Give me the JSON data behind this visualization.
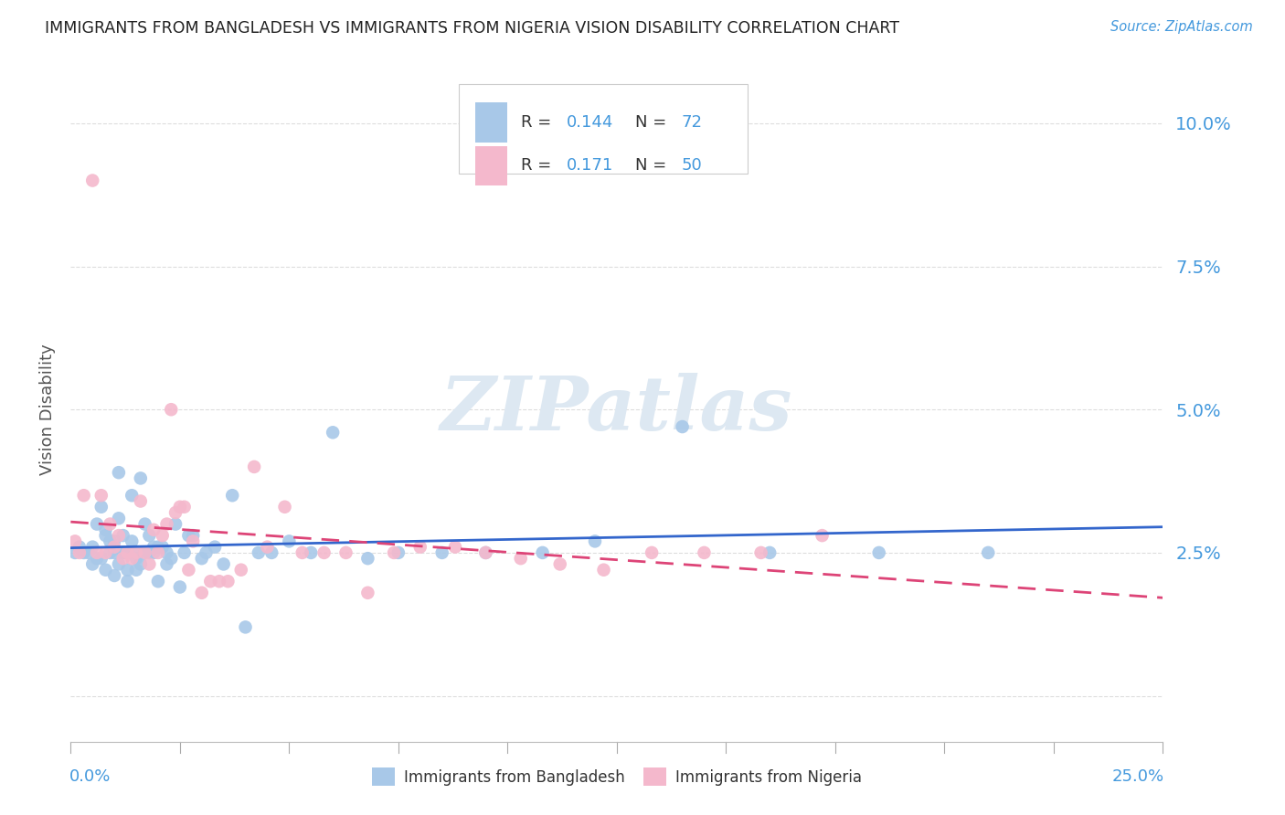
{
  "title": "IMMIGRANTS FROM BANGLADESH VS IMMIGRANTS FROM NIGERIA VISION DISABILITY CORRELATION CHART",
  "source": "Source: ZipAtlas.com",
  "ylabel": "Vision Disability",
  "yticks": [
    0.0,
    0.025,
    0.05,
    0.075,
    0.1
  ],
  "ytick_labels": [
    "",
    "2.5%",
    "5.0%",
    "7.5%",
    "10.0%"
  ],
  "xlim": [
    0.0,
    0.25
  ],
  "ylim": [
    -0.008,
    0.108
  ],
  "color_bangladesh": "#a8c8e8",
  "color_nigeria": "#f4b8cc",
  "trend_color_bangladesh": "#3366cc",
  "trend_color_nigeria": "#dd4477",
  "bangladesh_x": [
    0.001,
    0.002,
    0.003,
    0.004,
    0.005,
    0.005,
    0.006,
    0.006,
    0.007,
    0.007,
    0.008,
    0.008,
    0.008,
    0.009,
    0.009,
    0.01,
    0.01,
    0.01,
    0.011,
    0.011,
    0.011,
    0.012,
    0.012,
    0.012,
    0.013,
    0.013,
    0.013,
    0.014,
    0.014,
    0.015,
    0.015,
    0.015,
    0.016,
    0.016,
    0.017,
    0.017,
    0.018,
    0.018,
    0.019,
    0.019,
    0.02,
    0.02,
    0.021,
    0.022,
    0.022,
    0.023,
    0.024,
    0.025,
    0.026,
    0.027,
    0.028,
    0.03,
    0.031,
    0.033,
    0.035,
    0.037,
    0.04,
    0.043,
    0.046,
    0.05,
    0.055,
    0.06,
    0.068,
    0.075,
    0.085,
    0.095,
    0.108,
    0.12,
    0.14,
    0.16,
    0.185,
    0.21
  ],
  "bangladesh_y": [
    0.025,
    0.026,
    0.025,
    0.025,
    0.026,
    0.023,
    0.03,
    0.024,
    0.033,
    0.024,
    0.029,
    0.022,
    0.028,
    0.025,
    0.027,
    0.025,
    0.027,
    0.021,
    0.031,
    0.023,
    0.039,
    0.025,
    0.028,
    0.025,
    0.025,
    0.022,
    0.02,
    0.035,
    0.027,
    0.024,
    0.025,
    0.022,
    0.038,
    0.023,
    0.03,
    0.025,
    0.025,
    0.028,
    0.025,
    0.026,
    0.026,
    0.02,
    0.026,
    0.025,
    0.023,
    0.024,
    0.03,
    0.019,
    0.025,
    0.028,
    0.028,
    0.024,
    0.025,
    0.026,
    0.023,
    0.035,
    0.012,
    0.025,
    0.025,
    0.027,
    0.025,
    0.046,
    0.024,
    0.025,
    0.025,
    0.025,
    0.025,
    0.027,
    0.047,
    0.025,
    0.025,
    0.025
  ],
  "nigeria_x": [
    0.001,
    0.002,
    0.003,
    0.005,
    0.006,
    0.007,
    0.008,
    0.009,
    0.01,
    0.011,
    0.012,
    0.013,
    0.014,
    0.015,
    0.016,
    0.017,
    0.018,
    0.019,
    0.02,
    0.021,
    0.022,
    0.023,
    0.024,
    0.025,
    0.026,
    0.027,
    0.028,
    0.03,
    0.032,
    0.034,
    0.036,
    0.039,
    0.042,
    0.045,
    0.049,
    0.053,
    0.058,
    0.063,
    0.068,
    0.074,
    0.08,
    0.088,
    0.095,
    0.103,
    0.112,
    0.122,
    0.133,
    0.145,
    0.158,
    0.172
  ],
  "nigeria_y": [
    0.027,
    0.025,
    0.035,
    0.09,
    0.025,
    0.035,
    0.025,
    0.03,
    0.026,
    0.028,
    0.024,
    0.025,
    0.024,
    0.025,
    0.034,
    0.025,
    0.023,
    0.029,
    0.025,
    0.028,
    0.03,
    0.05,
    0.032,
    0.033,
    0.033,
    0.022,
    0.027,
    0.018,
    0.02,
    0.02,
    0.02,
    0.022,
    0.04,
    0.026,
    0.033,
    0.025,
    0.025,
    0.025,
    0.018,
    0.025,
    0.026,
    0.026,
    0.025,
    0.024,
    0.023,
    0.022,
    0.025,
    0.025,
    0.025,
    0.028
  ],
  "background_color": "#ffffff",
  "grid_color": "#dddddd",
  "title_color": "#222222",
  "ylabel_color": "#555555",
  "tick_color": "#4499dd",
  "watermark_text": "ZIPatlas",
  "watermark_color": "#dde8f2",
  "label_bangladesh": "Immigrants from Bangladesh",
  "label_nigeria": "Immigrants from Nigeria"
}
